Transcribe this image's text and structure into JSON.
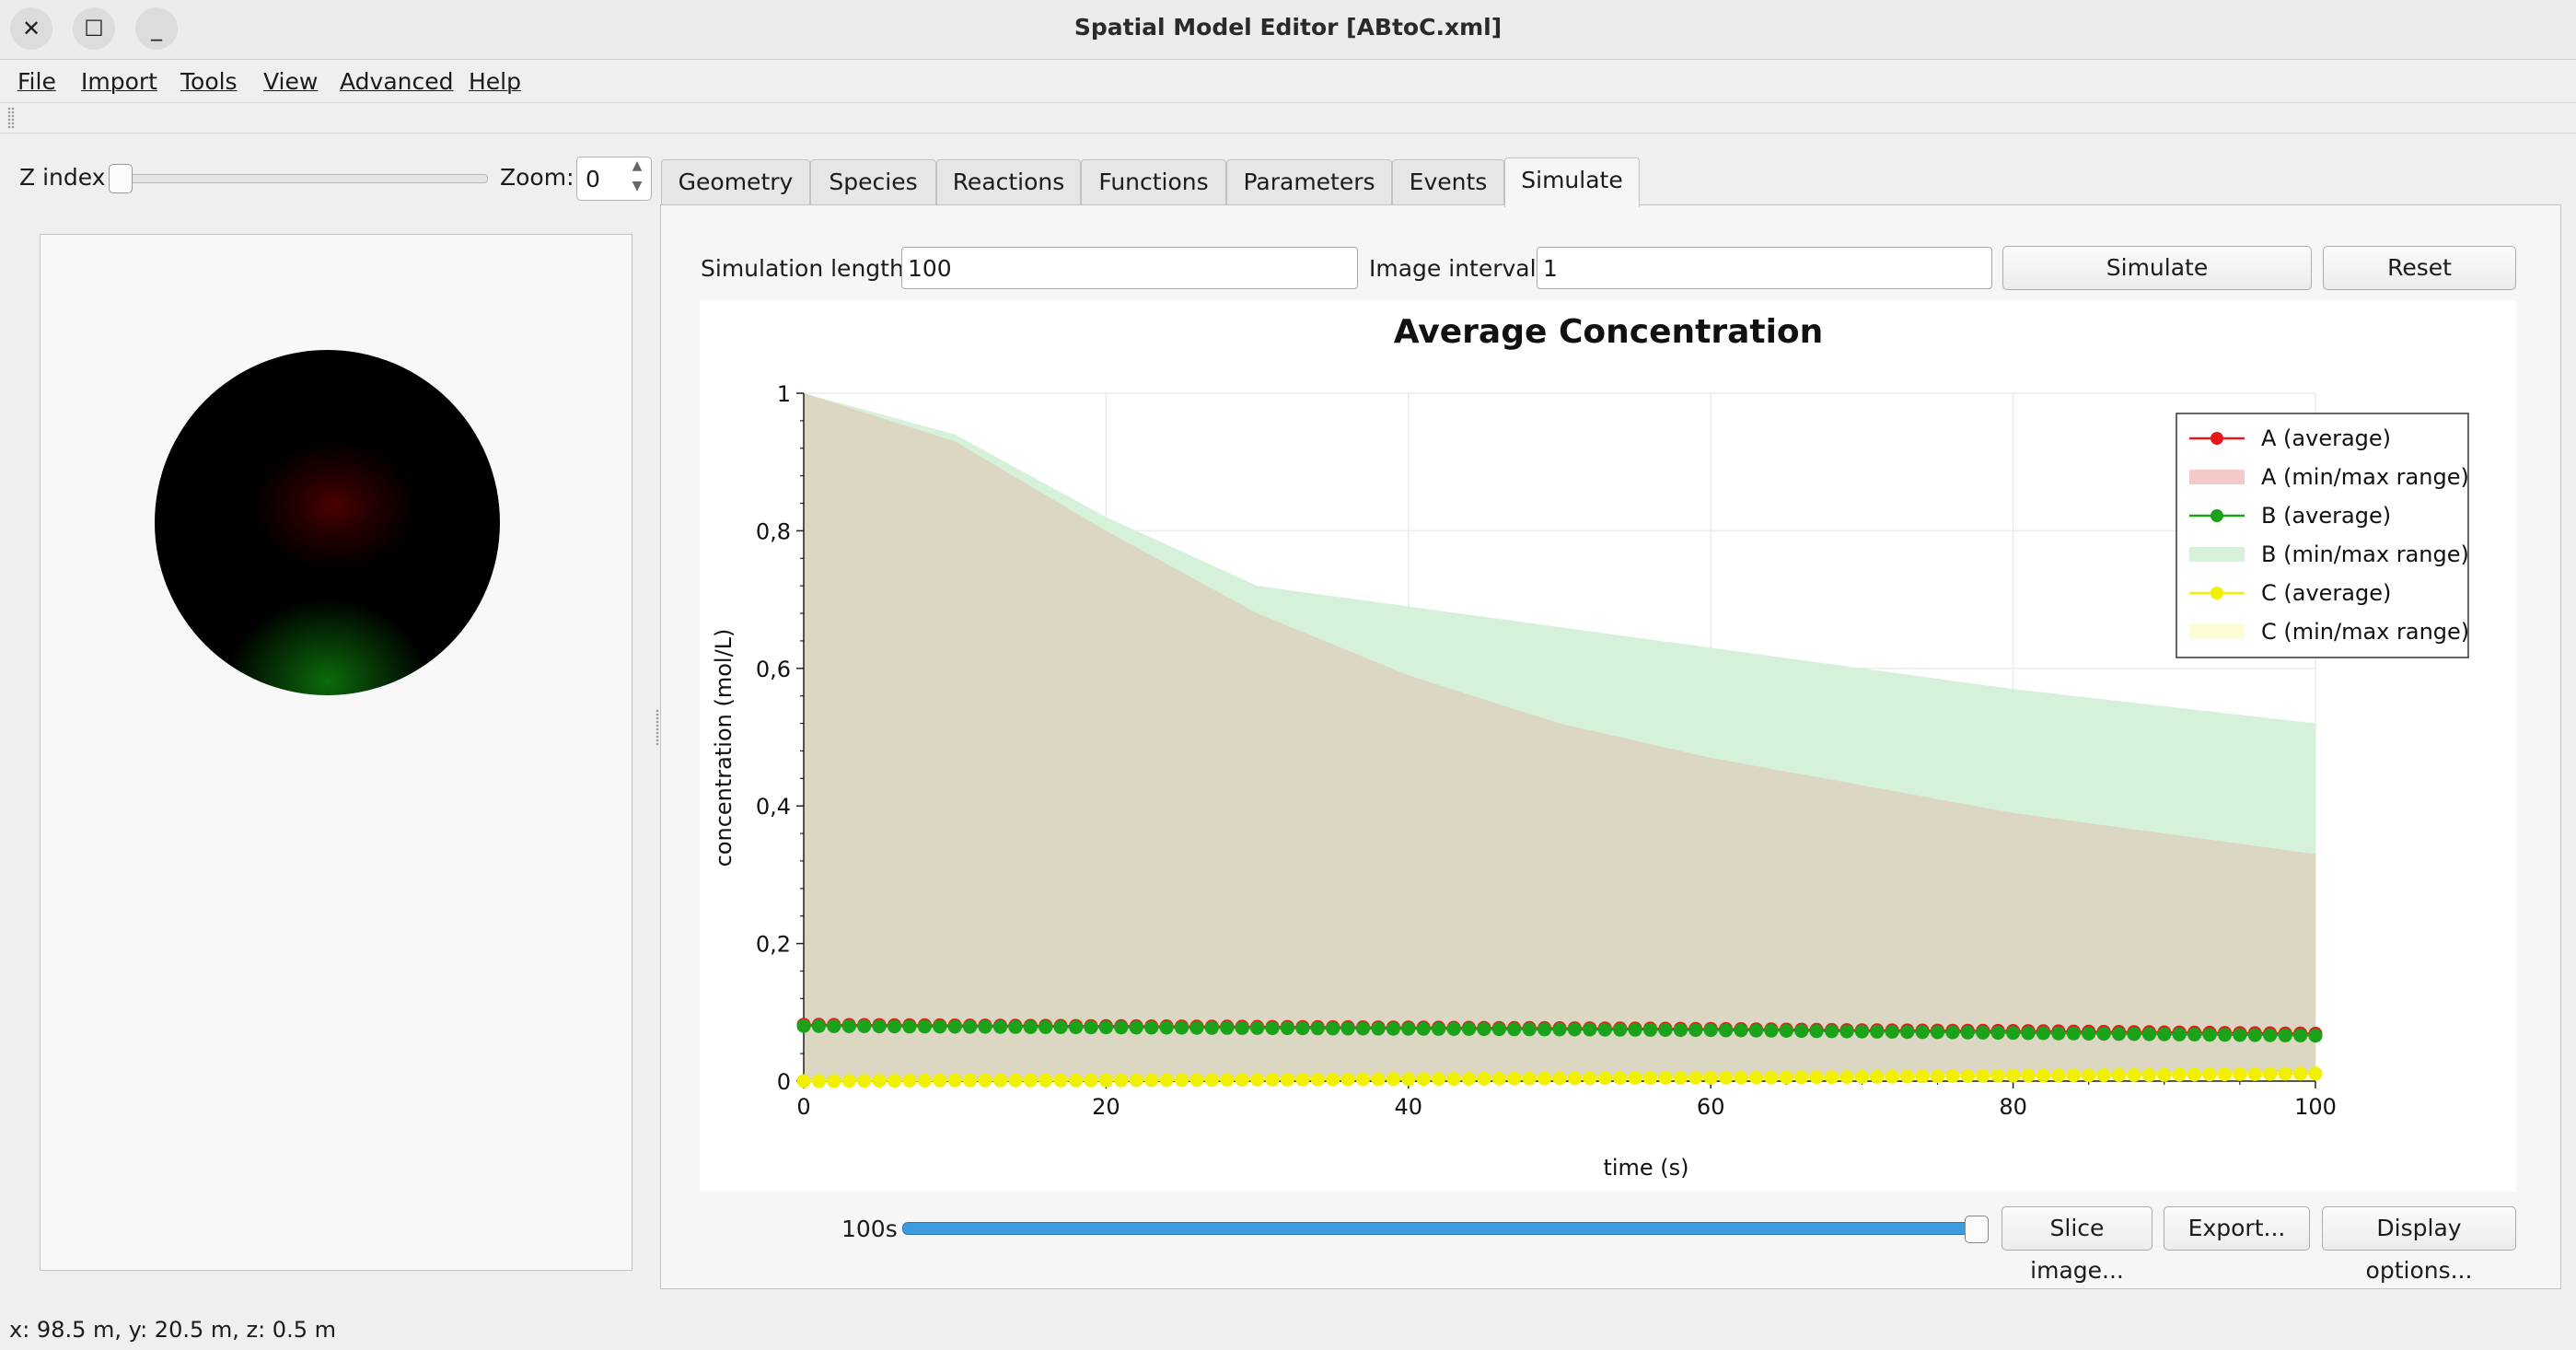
{
  "window": {
    "title": "Spatial Model Editor [ABtoC.xml]",
    "close_glyph": "✕",
    "maximize_glyph": "☐",
    "minimize_glyph": "_"
  },
  "menu": [
    "File",
    "Import",
    "Tools",
    "View",
    "Advanced",
    "Help"
  ],
  "left_panel": {
    "z_index_label": "Z index",
    "zoom_label": "Zoom:",
    "zoom_value": "0",
    "z_index_value": 0
  },
  "tabs": [
    {
      "label": "Geometry",
      "active": false
    },
    {
      "label": "Species",
      "active": false
    },
    {
      "label": "Reactions",
      "active": false
    },
    {
      "label": "Functions",
      "active": false
    },
    {
      "label": "Parameters",
      "active": false
    },
    {
      "label": "Events",
      "active": false
    },
    {
      "label": "Simulate",
      "active": true
    }
  ],
  "simulate": {
    "sim_length_label": "Simulation length:",
    "sim_length_value": "100",
    "image_interval_label": "Image interval:",
    "image_interval_value": "1",
    "simulate_button": "Simulate",
    "reset_button": "Reset",
    "time_label": "100s",
    "time_fraction": 1.0,
    "slice_button": "Slice image...",
    "export_button": "Export...",
    "display_options_button": "Display options..."
  },
  "status_bar": "x: 98.5 m, y: 20.5 m, z: 0.5 m",
  "colors": {
    "A": "#e31a1c",
    "B": "#1aa31a",
    "C": "#f0f000",
    "A_range": "#f3c9c9",
    "B_range": "#d6f1da",
    "C_range": "#fbfbd6",
    "overlap": "#dcd7c3",
    "time_slider": "#3d9be0"
  },
  "chart_data": {
    "type": "line",
    "title": "Average Concentration",
    "xlabel": "time (s)",
    "ylabel": "concentration (mol/L)",
    "xlim": [
      0,
      100
    ],
    "ylim": [
      0,
      1
    ],
    "x_ticks": [
      "0",
      "20",
      "40",
      "60",
      "80",
      "100"
    ],
    "y_ticks": [
      "0",
      "0,2",
      "0,4",
      "0,6",
      "0,8",
      "1"
    ],
    "grid": true,
    "legend_position": "top-right",
    "legend": [
      "A (average)",
      "A (min/max range)",
      "B (average)",
      "B (min/max range)",
      "C (average)",
      "C (min/max range)"
    ],
    "x": [
      0,
      10,
      20,
      30,
      40,
      50,
      60,
      70,
      80,
      90,
      100
    ],
    "series": [
      {
        "name": "A (average)",
        "values": [
          0.082,
          0.081,
          0.08,
          0.079,
          0.078,
          0.077,
          0.076,
          0.074,
          0.073,
          0.071,
          0.069
        ]
      },
      {
        "name": "B (average)",
        "values": [
          0.08,
          0.079,
          0.078,
          0.077,
          0.076,
          0.075,
          0.074,
          0.072,
          0.07,
          0.068,
          0.066
        ]
      },
      {
        "name": "C (average)",
        "values": [
          0.0,
          0.001,
          0.001,
          0.002,
          0.003,
          0.004,
          0.005,
          0.006,
          0.008,
          0.009,
          0.011
        ]
      }
    ],
    "ranges": [
      {
        "name": "A (min/max range)",
        "min": [
          0,
          0,
          0,
          0,
          0,
          0,
          0,
          0,
          0,
          0,
          0
        ],
        "max": [
          1.0,
          0.93,
          0.8,
          0.68,
          0.59,
          0.52,
          0.47,
          0.43,
          0.39,
          0.36,
          0.33
        ]
      },
      {
        "name": "B (min/max range)",
        "min": [
          0,
          0,
          0,
          0,
          0,
          0,
          0,
          0,
          0,
          0,
          0
        ],
        "max": [
          1.0,
          0.94,
          0.82,
          0.72,
          0.69,
          0.66,
          0.63,
          0.6,
          0.57,
          0.545,
          0.52
        ]
      },
      {
        "name": "C (min/max range)",
        "min": [
          0,
          0,
          0,
          0,
          0,
          0,
          0,
          0,
          0,
          0,
          0
        ],
        "max": [
          0.001,
          0.002,
          0.003,
          0.004,
          0.005,
          0.006,
          0.007,
          0.008,
          0.01,
          0.011,
          0.013
        ]
      }
    ]
  }
}
